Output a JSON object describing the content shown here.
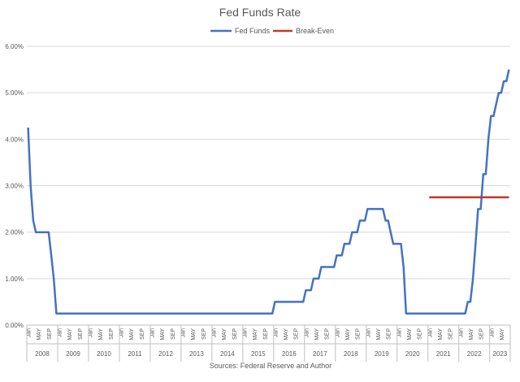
{
  "chart_data": {
    "type": "line",
    "title": "Fed Funds Rate",
    "source_note": "Sources: Federal Reserve and Author",
    "ylim": [
      0,
      6
    ],
    "y_ticks": [
      "0.00%",
      "1.00%",
      "2.00%",
      "3.00%",
      "4.00%",
      "5.00%",
      "6.00%"
    ],
    "x_month_labels": [
      "Jan",
      "MAY",
      "SEP"
    ],
    "x_years": [
      "2008",
      "2009",
      "2010",
      "2011",
      "2012",
      "2013",
      "2014",
      "2015",
      "2016",
      "2017",
      "2018",
      "2019",
      "2020",
      "2021",
      "2022",
      "2023"
    ],
    "x_range": [
      "2008-01",
      "2023-08"
    ],
    "grid": true,
    "legend_position": "top-center",
    "series": [
      {
        "name": "Fed Funds",
        "color": "#4472c4",
        "points": [
          [
            "2008-01",
            4.25
          ],
          [
            "2008-02",
            3.0
          ],
          [
            "2008-03",
            2.25
          ],
          [
            "2008-04",
            2.0
          ],
          [
            "2008-08",
            2.0
          ],
          [
            "2008-09",
            2.0
          ],
          [
            "2008-10",
            1.5
          ],
          [
            "2008-11",
            1.0
          ],
          [
            "2008-12",
            0.25
          ],
          [
            "2015-12",
            0.25
          ],
          [
            "2016-01",
            0.5
          ],
          [
            "2016-12",
            0.5
          ],
          [
            "2017-01",
            0.75
          ],
          [
            "2017-03",
            0.75
          ],
          [
            "2017-04",
            1.0
          ],
          [
            "2017-06",
            1.0
          ],
          [
            "2017-07",
            1.25
          ],
          [
            "2017-12",
            1.25
          ],
          [
            "2018-01",
            1.5
          ],
          [
            "2018-03",
            1.5
          ],
          [
            "2018-04",
            1.75
          ],
          [
            "2018-06",
            1.75
          ],
          [
            "2018-07",
            2.0
          ],
          [
            "2018-09",
            2.0
          ],
          [
            "2018-10",
            2.25
          ],
          [
            "2018-12",
            2.25
          ],
          [
            "2019-01",
            2.5
          ],
          [
            "2019-07",
            2.5
          ],
          [
            "2019-08",
            2.25
          ],
          [
            "2019-09",
            2.25
          ],
          [
            "2019-10",
            2.0
          ],
          [
            "2019-11",
            1.75
          ],
          [
            "2020-02",
            1.75
          ],
          [
            "2020-03",
            1.25
          ],
          [
            "2020-04",
            0.25
          ],
          [
            "2022-03",
            0.25
          ],
          [
            "2022-04",
            0.5
          ],
          [
            "2022-05",
            0.5
          ],
          [
            "2022-06",
            1.0
          ],
          [
            "2022-07",
            1.75
          ],
          [
            "2022-08",
            2.5
          ],
          [
            "2022-09",
            2.5
          ],
          [
            "2022-10",
            3.25
          ],
          [
            "2022-11",
            3.25
          ],
          [
            "2022-12",
            4.0
          ],
          [
            "2023-01",
            4.5
          ],
          [
            "2023-02",
            4.5
          ],
          [
            "2023-03",
            4.75
          ],
          [
            "2023-04",
            5.0
          ],
          [
            "2023-05",
            5.0
          ],
          [
            "2023-06",
            5.25
          ],
          [
            "2023-07",
            5.25
          ],
          [
            "2023-08",
            5.5
          ]
        ]
      },
      {
        "name": "Break-Even",
        "color": "#c0392b",
        "points": [
          [
            "2021-01",
            2.75
          ],
          [
            "2023-08",
            2.75
          ]
        ]
      }
    ]
  }
}
